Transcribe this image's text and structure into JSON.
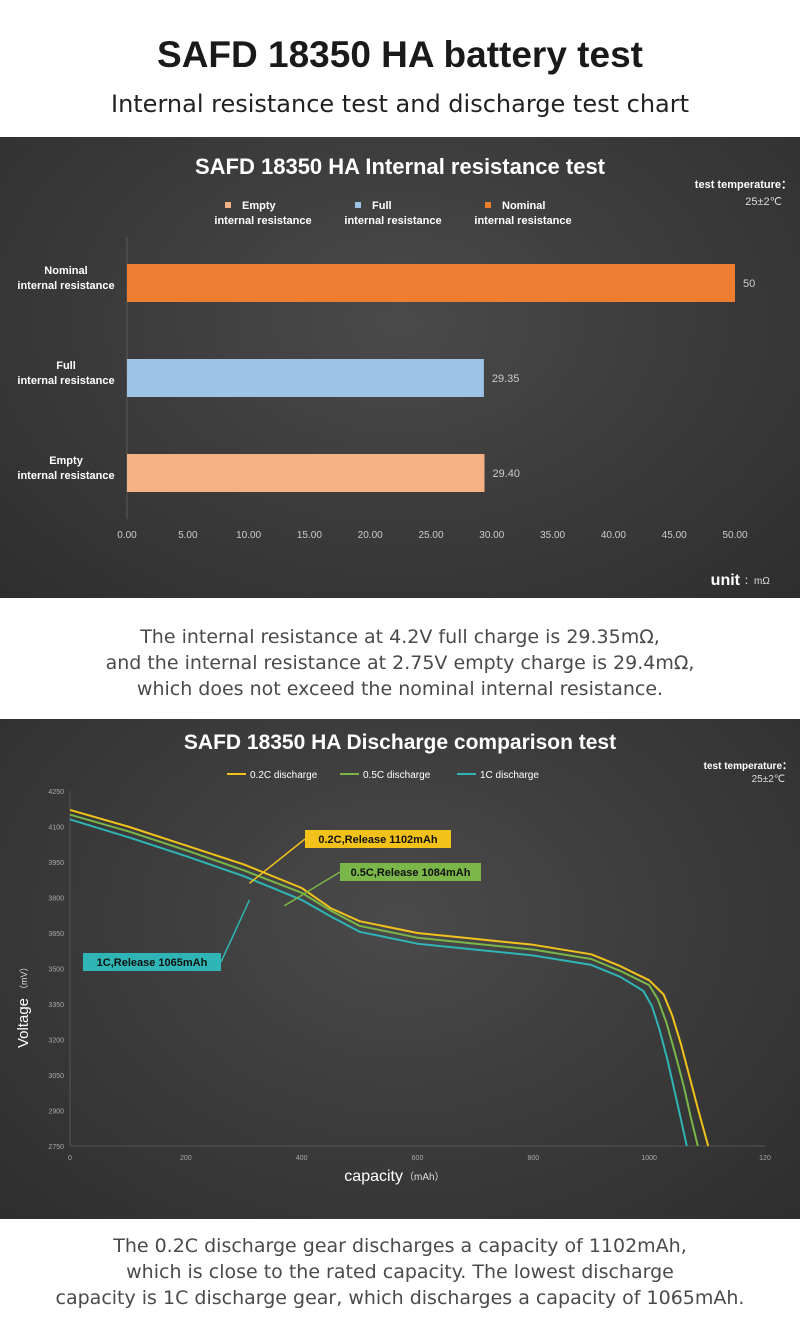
{
  "page": {
    "title": "SAFD 18350 HA battery test",
    "subtitle": "Internal resistance test and discharge test chart"
  },
  "captions": {
    "resistance": [
      "The internal resistance at 4.2V full charge is 29.35mΩ,",
      "and the internal resistance at 2.75V empty charge is 29.4mΩ,",
      "which does not exceed the nominal internal resistance."
    ],
    "discharge": [
      "The 0.2C discharge gear discharges a capacity of 1102mAh,",
      "which is close to the rated capacity. The lowest discharge",
      "capacity is 1C discharge gear, which discharges a capacity of 1065mAh."
    ]
  },
  "chart_data": [
    {
      "type": "bar",
      "orientation": "horizontal",
      "title": "SAFD 18350 HA Internal resistance test",
      "test_temperature_label": "test temperature：",
      "test_temperature_value": "25±2℃",
      "unit_label": "unit",
      "unit_value": "：mΩ",
      "xlim": [
        0,
        50
      ],
      "x_ticks": [
        "0.00",
        "5.00",
        "10.00",
        "15.00",
        "20.00",
        "25.00",
        "30.00",
        "35.00",
        "40.00",
        "45.00",
        "50.00"
      ],
      "legend_position": "top",
      "legend": [
        {
          "line1": "Empty",
          "line2": "internal resistance",
          "color": "#f4b183"
        },
        {
          "line1": "Full",
          "line2": "internal resistance",
          "color": "#9dc3e6"
        },
        {
          "line1": "Nominal",
          "line2": "internal resistance",
          "color": "#ed7d31"
        }
      ],
      "bars": [
        {
          "line1": "Nominal",
          "line2": "internal resistance",
          "value": 50,
          "value_label": "50",
          "color": "#ed7d31"
        },
        {
          "line1": "Full",
          "line2": "internal resistance",
          "value": 29.35,
          "value_label": "29.35",
          "color": "#9dc3e6"
        },
        {
          "line1": "Empty",
          "line2": "internal resistance",
          "value": 29.4,
          "value_label": "29.40",
          "color": "#f4b183"
        }
      ]
    },
    {
      "type": "line",
      "title": "SAFD 18350 HA  Discharge comparison test",
      "test_temperature_label": "test temperature：",
      "test_temperature_value": "25±2℃",
      "xlabel": "capacity",
      "xlabel_unit": "（mAh）",
      "ylabel": "Voltage",
      "ylabel_unit": "（mV）",
      "xlim": [
        0,
        1200
      ],
      "ylim": [
        2750,
        4250
      ],
      "x_ticks": [
        "0",
        "200",
        "400",
        "600",
        "800",
        "1000",
        "120"
      ],
      "y_ticks": [
        "4250",
        "4100",
        "3950",
        "3800",
        "3650",
        "3500",
        "3350",
        "3200",
        "3050",
        "2900",
        "2750"
      ],
      "legend_position": "top",
      "series": [
        {
          "name": "0.2C discharge",
          "color": "#f2c21b",
          "callout": "0.2C,Release 1102mAh",
          "callout_bg": "#f2c21b",
          "points": [
            [
              0,
              4170
            ],
            [
              100,
              4100
            ],
            [
              200,
              4020
            ],
            [
              300,
              3940
            ],
            [
              400,
              3840
            ],
            [
              450,
              3755
            ],
            [
              500,
              3700
            ],
            [
              600,
              3650
            ],
            [
              700,
              3625
            ],
            [
              800,
              3600
            ],
            [
              900,
              3560
            ],
            [
              950,
              3510
            ],
            [
              1000,
              3450
            ],
            [
              1025,
              3390
            ],
            [
              1040,
              3300
            ],
            [
              1055,
              3180
            ],
            [
              1070,
              3040
            ],
            [
              1085,
              2900
            ],
            [
              1102,
              2750
            ]
          ]
        },
        {
          "name": "0.5C discharge",
          "color": "#7ab648",
          "callout": "0.5C,Release 1084mAh",
          "callout_bg": "#7ab648",
          "points": [
            [
              0,
              4150
            ],
            [
              100,
              4080
            ],
            [
              200,
              4000
            ],
            [
              300,
              3915
            ],
            [
              400,
              3820
            ],
            [
              450,
              3745
            ],
            [
              500,
              3680
            ],
            [
              600,
              3630
            ],
            [
              700,
              3605
            ],
            [
              800,
              3580
            ],
            [
              900,
              3540
            ],
            [
              950,
              3490
            ],
            [
              1000,
              3430
            ],
            [
              1015,
              3370
            ],
            [
              1030,
              3270
            ],
            [
              1045,
              3140
            ],
            [
              1060,
              3000
            ],
            [
              1072,
              2870
            ],
            [
              1084,
              2750
            ]
          ]
        },
        {
          "name": "1C discharge",
          "color": "#2fb5b5",
          "callout": "1C,Release 1065mAh",
          "callout_bg": "#2fb5b5",
          "points": [
            [
              0,
              4130
            ],
            [
              100,
              4055
            ],
            [
              200,
              3975
            ],
            [
              300,
              3890
            ],
            [
              400,
              3790
            ],
            [
              450,
              3720
            ],
            [
              500,
              3655
            ],
            [
              600,
              3605
            ],
            [
              700,
              3580
            ],
            [
              800,
              3555
            ],
            [
              900,
              3515
            ],
            [
              950,
              3465
            ],
            [
              990,
              3405
            ],
            [
              1005,
              3340
            ],
            [
              1018,
              3240
            ],
            [
              1032,
              3110
            ],
            [
              1045,
              2970
            ],
            [
              1056,
              2850
            ],
            [
              1065,
              2750
            ]
          ]
        }
      ]
    }
  ]
}
